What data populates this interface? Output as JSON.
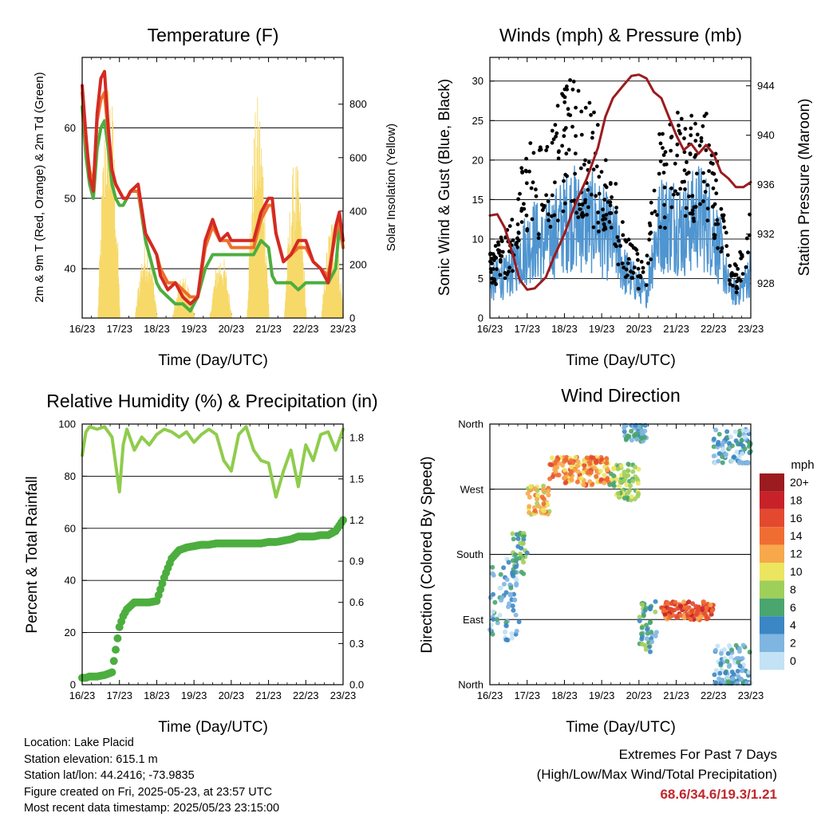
{
  "footer": {
    "location": "Location: Lake Placid",
    "elevation": "Station elevation: 615.1 m",
    "latlon": "Station lat/lon: 44.2416; -73.9835",
    "created": "Figure created on Fri, 2025-05-23, at 23:57 UTC",
    "recent": "Most recent data timestamp: 2025/05/23 23:15:00"
  },
  "extremes": {
    "title": "Extremes For Past 7 Days",
    "subtitle": "(High/Low/Max Wind/Total Precipitation)",
    "values": "68.6/34.6/19.3/1.21"
  },
  "colors": {
    "temp2m": "#d42a23",
    "temp9m": "#ee6f2a",
    "dewpoint": "#4cae3f",
    "solar": "#f7d96a",
    "sonic": "#4f95d0",
    "gust": "#000000",
    "pressure": "#9b1b1f",
    "rh": "#8fcc4c",
    "precip": "#4cae3f"
  },
  "chart_data": [
    {
      "type": "line",
      "title": "Temperature (F)",
      "xlabel": "Time (Day/UTC)",
      "ylabel": "2m & 9m T (Red, Orange) & 2m Td (Green)",
      "y2label": "Solar Insolation (Yellow)",
      "xticks": [
        "16/23",
        "17/23",
        "18/23",
        "19/23",
        "20/23",
        "21/23",
        "22/23",
        "23/23"
      ],
      "ylim": [
        33,
        70
      ],
      "yticks": [
        40,
        50,
        60
      ],
      "y2lim": [
        0,
        975
      ],
      "y2ticks": [
        0,
        200,
        400,
        600,
        800
      ],
      "grid": true,
      "x_days": [
        0,
        0.1,
        0.2,
        0.3,
        0.4,
        0.5,
        0.6,
        0.7,
        0.8,
        0.9,
        1.0,
        1.1,
        1.2,
        1.3,
        1.5,
        1.7,
        1.9,
        2.0,
        2.1,
        2.3,
        2.5,
        2.7,
        2.9,
        3.1,
        3.3,
        3.5,
        3.7,
        3.9,
        4.0,
        4.3,
        4.6,
        4.8,
        5.0,
        5.1,
        5.2,
        5.4,
        5.6,
        5.8,
        6.0,
        6.2,
        6.4,
        6.6,
        6.8,
        6.9,
        7.0
      ],
      "series": [
        {
          "name": "2m T",
          "values": [
            66,
            59,
            53,
            51,
            62,
            67,
            68,
            60,
            54,
            52,
            51,
            50,
            50,
            51,
            52,
            45,
            43,
            42,
            39,
            37,
            38,
            36,
            35,
            36,
            44,
            47,
            44,
            45,
            44,
            44,
            44,
            48,
            50,
            50,
            45,
            41,
            42,
            44,
            44,
            41,
            40,
            38,
            46,
            48,
            44
          ]
        },
        {
          "name": "9m T",
          "values": [
            65,
            58,
            54,
            52,
            61,
            64,
            65,
            59,
            54,
            52,
            51,
            50,
            50,
            51,
            51,
            45,
            43,
            42,
            40,
            38,
            38,
            37,
            36,
            36,
            43,
            46,
            44,
            44,
            43,
            43,
            43,
            47,
            49,
            49,
            45,
            41,
            42,
            43,
            43,
            41,
            40,
            39,
            45,
            47,
            43
          ]
        },
        {
          "name": "2m Td",
          "values": [
            63,
            56,
            52,
            50,
            57,
            60,
            61,
            57,
            52,
            50,
            49,
            49,
            50,
            51,
            51,
            44,
            40,
            38,
            37,
            36,
            35,
            35,
            34,
            36,
            40,
            42,
            42,
            42,
            42,
            42,
            42,
            44,
            43,
            39,
            38,
            38,
            38,
            37,
            38,
            38,
            38,
            38,
            40,
            46,
            43
          ]
        }
      ],
      "solar_peak_days": [
        0.72,
        1.72,
        2.72,
        3.72,
        4.72,
        5.72,
        6.72
      ],
      "solar_peak_values": [
        930,
        300,
        160,
        250,
        840,
        600,
        390
      ]
    },
    {
      "type": "scatter",
      "title": "Winds (mph) & Pressure (mb)",
      "xlabel": "Time (Day/UTC)",
      "ylabel": "Sonic Wind & Gust (Blue, Black)",
      "y2label": "Station Pressure (Maroon)",
      "xticks": [
        "16/23",
        "17/23",
        "18/23",
        "19/23",
        "20/23",
        "21/23",
        "22/23",
        "23/23"
      ],
      "ylim": [
        0,
        33
      ],
      "yticks": [
        0,
        5,
        10,
        15,
        20,
        25,
        30
      ],
      "y2lim": [
        925.2,
        946.3
      ],
      "y2ticks": [
        928,
        932,
        936,
        940,
        944
      ],
      "grid": true,
      "x_days": [
        0,
        0.2,
        0.4,
        0.6,
        0.8,
        1.0,
        1.2,
        1.4,
        1.6,
        1.8,
        2.0,
        2.2,
        2.4,
        2.6,
        2.8,
        3.0,
        3.2,
        3.4,
        3.6,
        3.8,
        4.0,
        4.2,
        4.4,
        4.6,
        4.8,
        5.0,
        5.2,
        5.4,
        5.6,
        5.8,
        6.0,
        6.2,
        6.4,
        6.6,
        6.8,
        7.0
      ],
      "sonic_avg": [
        4,
        5,
        5,
        6,
        8,
        9,
        10,
        9,
        10,
        11,
        12,
        13,
        12,
        12,
        12,
        11,
        10,
        9,
        6,
        5,
        4,
        3,
        9,
        12,
        12,
        12,
        11,
        12,
        13,
        12,
        11,
        8,
        4,
        3,
        4,
        6
      ],
      "gust_avg": [
        6,
        7,
        8,
        9,
        14,
        16,
        17,
        15,
        17,
        20,
        21,
        22,
        21,
        20,
        19,
        17,
        14,
        12,
        8,
        7,
        6,
        5,
        14,
        18,
        19,
        19,
        18,
        19,
        20,
        19,
        17,
        12,
        6,
        5,
        7,
        10
      ],
      "pressure_x": [
        0,
        0.2,
        0.4,
        0.6,
        0.8,
        1.0,
        1.2,
        1.5,
        1.7,
        2.0,
        2.3,
        2.6,
        2.9,
        3.1,
        3.3,
        3.6,
        3.8,
        4.0,
        4.2,
        4.4,
        4.6,
        4.8,
        5.0,
        5.2,
        5.4,
        5.6,
        5.8,
        6.0,
        6.2,
        6.4,
        6.6,
        6.8,
        7.0
      ],
      "pressure": [
        933.5,
        933.6,
        932.5,
        930.5,
        928.3,
        927.5,
        927.6,
        928.5,
        930.0,
        932.0,
        934.5,
        936.5,
        939.0,
        941.5,
        943.0,
        944.1,
        944.8,
        944.9,
        944.6,
        943.5,
        943.0,
        941.5,
        940.0,
        938.8,
        939.3,
        938.5,
        939.2,
        938.5,
        937.0,
        936.5,
        935.8,
        935.8,
        936.2
      ]
    },
    {
      "type": "line",
      "title": "Relative Humidity (%) & Precipitation (in)",
      "xlabel": "Time (Day/UTC)",
      "ylabel": "Percent & Total Rainfall",
      "xticks": [
        "16/23",
        "17/23",
        "18/23",
        "19/23",
        "20/23",
        "21/23",
        "22/23",
        "23/23"
      ],
      "ylim": [
        0,
        100
      ],
      "yticks": [
        0,
        20,
        40,
        60,
        80,
        100
      ],
      "y2lim": [
        0,
        1.9
      ],
      "y2ticks": [
        0.0,
        0.3,
        0.6,
        0.9,
        1.2,
        1.5,
        1.8
      ],
      "y2ticklabels": [
        "0.0",
        "0.3",
        "0.6",
        "0.9",
        "1.2",
        "1.5",
        "1.8"
      ],
      "grid": true,
      "x_days": [
        0,
        0.1,
        0.2,
        0.4,
        0.6,
        0.8,
        1.0,
        1.1,
        1.2,
        1.4,
        1.6,
        1.8,
        2.0,
        2.2,
        2.4,
        2.6,
        2.8,
        3.0,
        3.2,
        3.4,
        3.6,
        3.8,
        4.0,
        4.2,
        4.4,
        4.6,
        4.8,
        5.0,
        5.2,
        5.4,
        5.6,
        5.8,
        6.0,
        6.2,
        6.4,
        6.6,
        6.8,
        7.0
      ],
      "series": [
        {
          "name": "Relative Humidity",
          "values": [
            88,
            97,
            99,
            98,
            99,
            95,
            74,
            92,
            98,
            90,
            95,
            92,
            96,
            98,
            97,
            95,
            97,
            93,
            96,
            98,
            96,
            86,
            82,
            96,
            99,
            90,
            86,
            85,
            72,
            82,
            90,
            76,
            92,
            86,
            96,
            97,
            90,
            98
          ]
        },
        {
          "name": "Total Precipitation",
          "values": [
            0.05,
            0.05,
            0.06,
            0.06,
            0.07,
            0.09,
            0.42,
            0.5,
            0.55,
            0.6,
            0.6,
            0.6,
            0.61,
            0.78,
            0.92,
            0.98,
            1.0,
            1.01,
            1.02,
            1.02,
            1.03,
            1.03,
            1.03,
            1.03,
            1.03,
            1.03,
            1.03,
            1.04,
            1.04,
            1.05,
            1.06,
            1.08,
            1.08,
            1.08,
            1.09,
            1.09,
            1.12,
            1.2
          ]
        }
      ]
    },
    {
      "type": "scatter",
      "title": "Wind Direction",
      "xlabel": "Time (Day/UTC)",
      "ylabel": "Direction (Colored By Speed)",
      "xticks": [
        "16/23",
        "17/23",
        "18/23",
        "19/23",
        "20/23",
        "21/23",
        "22/23",
        "23/23"
      ],
      "ylim": [
        0,
        360
      ],
      "yticks": [
        0,
        90,
        180,
        270,
        360
      ],
      "yticklabels": [
        "North",
        "East",
        "South",
        "West",
        "North"
      ],
      "grid": true,
      "legend_title": "mph",
      "legend_labels": [
        "20+",
        "18",
        "16",
        "14",
        "12",
        "10",
        "8",
        "6",
        "4",
        "2",
        "0"
      ],
      "legend_colors": [
        "#9b1b1f",
        "#c72229",
        "#e3492f",
        "#ef6d32",
        "#f7a84b",
        "#ece55f",
        "#9fcf5b",
        "#4aa56e",
        "#3b86c4",
        "#7fb5e1",
        "#c3e2f5"
      ],
      "clusters": [
        {
          "x_start": 0.0,
          "x_end": 0.8,
          "dir_center": 120,
          "dir_spread": 120,
          "speed": 3
        },
        {
          "x_start": 0.6,
          "x_end": 1.0,
          "dir_center": 180,
          "dir_spread": 60,
          "speed": 6
        },
        {
          "x_start": 1.0,
          "x_end": 1.6,
          "dir_center": 255,
          "dir_spread": 40,
          "speed": 11
        },
        {
          "x_start": 1.6,
          "x_end": 3.2,
          "dir_center": 295,
          "dir_spread": 40,
          "speed": 13
        },
        {
          "x_start": 3.2,
          "x_end": 4.0,
          "dir_center": 280,
          "dir_spread": 50,
          "speed": 8
        },
        {
          "x_start": 3.6,
          "x_end": 4.2,
          "dir_center": 350,
          "dir_spread": 30,
          "speed": 4
        },
        {
          "x_start": 4.0,
          "x_end": 4.5,
          "dir_center": 80,
          "dir_spread": 70,
          "speed": 5
        },
        {
          "x_start": 4.6,
          "x_end": 6.0,
          "dir_center": 102,
          "dir_spread": 25,
          "speed": 15
        },
        {
          "x_start": 6.0,
          "x_end": 7.0,
          "dir_center": 25,
          "dir_spread": 60,
          "speed": 3
        },
        {
          "x_start": 6.0,
          "x_end": 7.0,
          "dir_center": 330,
          "dir_spread": 50,
          "speed": 3
        }
      ]
    }
  ]
}
